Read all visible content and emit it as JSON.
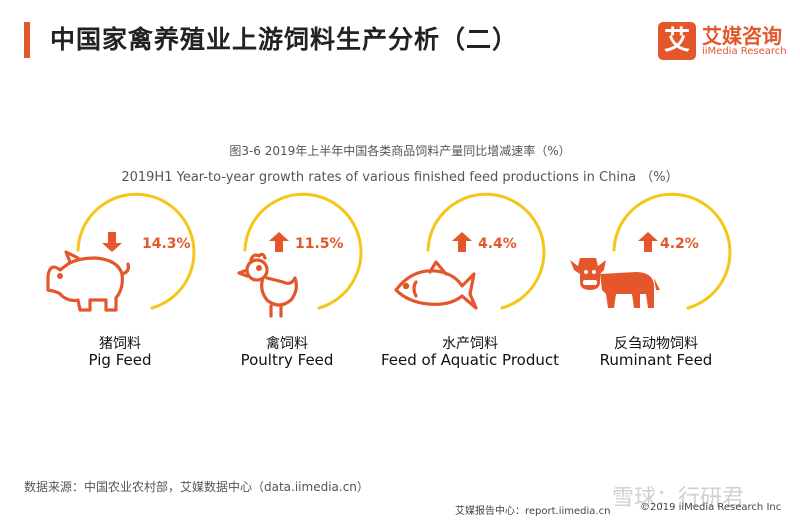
{
  "header": {
    "title": "中国家禽养殖业上游饲料生产分析（二）",
    "logo_glyph": "艾",
    "logo_cn": "艾媒咨询",
    "logo_en": "iiMedia Research"
  },
  "colors": {
    "accent": "#e3572a",
    "arc": "#f5c518",
    "up": "#e3572a",
    "down": "#e3572a"
  },
  "chart_data": {
    "type": "table",
    "title": "图3-6 2019年上半年中国各类商品饲料产量同比增减速率（%）",
    "subtitle": "2019H1 Year-to-year growth rates of various finished feed productions in China （%）",
    "items": [
      {
        "name_cn": "猪饲料",
        "name_en": "Pig Feed",
        "value_label": "14.3%",
        "value": -14.3,
        "direction": "down",
        "icon": "pig-icon"
      },
      {
        "name_cn": "禽饲料",
        "name_en": "Poultry Feed",
        "value_label": "11.5%",
        "value": 11.5,
        "direction": "up",
        "icon": "chicken-icon"
      },
      {
        "name_cn": "水产饲料",
        "name_en": "Feed of Aquatic Product",
        "value_label": "4.4%",
        "value": 4.4,
        "direction": "up",
        "icon": "fish-icon"
      },
      {
        "name_cn": "反刍动物饲料",
        "name_en": "Ruminant Feed",
        "value_label": "4.2%",
        "value": 4.2,
        "direction": "up",
        "icon": "cow-icon"
      }
    ]
  },
  "footer": {
    "source": "数据来源：中国农业农村部，艾媒数据中心（data.iimedia.cn）",
    "report_center": "艾媒报告中心：report.iimedia.cn",
    "copyright": "©2019  iiMedia Research  Inc",
    "watermark": "雪球：行研君"
  }
}
